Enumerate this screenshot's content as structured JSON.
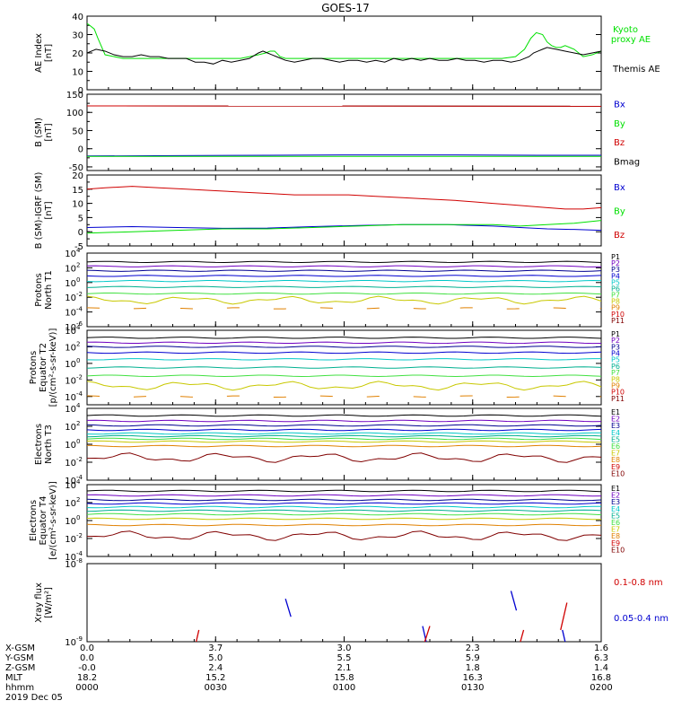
{
  "title": "GOES-17",
  "colors": {
    "black": "#000000",
    "red": "#d00000",
    "green": "#00e000",
    "blue": "#0000d0",
    "purple": "#7000c0",
    "navy": "#000090",
    "cyan": "#00c8c8",
    "teal": "#00b090",
    "lime": "#40e040",
    "yellow": "#c8c800",
    "orange": "#e08000",
    "maroon": "#800000"
  },
  "chart_data": [
    {
      "id": "ae",
      "type": "line",
      "ylabel": "AE Index [nT]",
      "ylim": [
        0,
        40
      ],
      "yticks": [
        0,
        10,
        20,
        30,
        40
      ],
      "legend": [
        {
          "name": "Kyoto proxy AE",
          "color": "green"
        },
        {
          "name": "Themis AE",
          "color": "black"
        }
      ],
      "series": [
        {
          "name": "Kyoto proxy AE",
          "color": "green",
          "x": [
            0,
            3,
            8,
            12,
            20,
            40,
            60,
            70,
            80,
            85,
            90,
            100,
            110,
            114,
            120,
            130,
            150,
            160,
            170,
            180,
            190,
            198,
            203,
            208,
            214,
            220,
            225,
            230,
            240,
            250,
            260,
            280,
            300,
            320,
            340,
            360,
            380,
            400,
            420,
            440,
            460,
            475,
            485,
            492,
            498,
            505,
            510,
            515,
            520,
            525,
            530,
            540,
            550,
            560,
            570
          ],
          "y": [
            36,
            35,
            33,
            28,
            19,
            17,
            17,
            17,
            17,
            17,
            17,
            17,
            17,
            17,
            17,
            17,
            17,
            17,
            17,
            18,
            19,
            20,
            21,
            21,
            18,
            17,
            17,
            17,
            17,
            17,
            17,
            17,
            17,
            17,
            17,
            17,
            17,
            17,
            17,
            17,
            17,
            18,
            22,
            28,
            31,
            30,
            26,
            24,
            23,
            23,
            24,
            22,
            18,
            19,
            21
          ]
        },
        {
          "name": "Themis AE",
          "color": "black",
          "x": [
            0,
            5,
            10,
            20,
            30,
            40,
            50,
            60,
            70,
            80,
            90,
            100,
            110,
            115,
            120,
            130,
            140,
            150,
            160,
            170,
            180,
            190,
            195,
            200,
            205,
            210,
            215,
            220,
            230,
            240,
            250,
            260,
            270,
            280,
            290,
            300,
            310,
            320,
            330,
            340,
            350,
            360,
            370,
            380,
            390,
            400,
            410,
            420,
            430,
            440,
            450,
            460,
            470,
            480,
            490,
            495,
            500,
            505,
            510,
            520,
            530,
            540,
            550,
            560,
            570
          ],
          "y": [
            20,
            21,
            22,
            21,
            19,
            18,
            18,
            19,
            18,
            18,
            17,
            17,
            17,
            16,
            15,
            15,
            14,
            16,
            15,
            16,
            17,
            20,
            21,
            20,
            19,
            18,
            17,
            16,
            15,
            16,
            17,
            17,
            16,
            15,
            16,
            16,
            15,
            16,
            15,
            17,
            16,
            17,
            16,
            17,
            16,
            16,
            17,
            16,
            16,
            15,
            16,
            16,
            15,
            16,
            18,
            20,
            21,
            22,
            23,
            22,
            21,
            20,
            19,
            20,
            21
          ]
        }
      ]
    },
    {
      "id": "b",
      "type": "line",
      "ylabel": "B (SM) [nT]",
      "ylim": [
        -60,
        150
      ],
      "yticks": [
        -50,
        0,
        50,
        100,
        150
      ],
      "legend": [
        {
          "name": "Bx",
          "color": "blue"
        },
        {
          "name": "By",
          "color": "green"
        },
        {
          "name": "Bz",
          "color": "red"
        },
        {
          "name": "Bmag",
          "color": "black"
        }
      ],
      "series": [
        {
          "name": "Bmag",
          "color": "black",
          "x": [
            0,
            570
          ],
          "y": [
            118,
            117
          ]
        },
        {
          "name": "Bz",
          "color": "red",
          "x": [
            0,
            570
          ],
          "y": [
            118,
            117
          ]
        },
        {
          "name": "Bx",
          "color": "blue",
          "x": [
            0,
            100,
            200,
            300,
            400,
            500,
            570
          ],
          "y": [
            -20,
            -19,
            -18,
            -17,
            -17,
            -18,
            -18
          ]
        },
        {
          "name": "By",
          "color": "green",
          "x": [
            0,
            570
          ],
          "y": [
            -21,
            -21
          ]
        }
      ]
    },
    {
      "id": "db",
      "type": "line",
      "ylabel": "B (SM)-IGRF (SM) [nT]",
      "ylim": [
        -5,
        20
      ],
      "yticks": [
        -5,
        0,
        5,
        10,
        15,
        20
      ],
      "legend": [
        {
          "name": "Bx",
          "color": "blue"
        },
        {
          "name": "By",
          "color": "green"
        },
        {
          "name": "Bz",
          "color": "red"
        }
      ],
      "series": [
        {
          "name": "Bz",
          "color": "red",
          "x": [
            0,
            20,
            50,
            80,
            110,
            140,
            170,
            200,
            230,
            260,
            290,
            320,
            350,
            380,
            410,
            430,
            450,
            470,
            490,
            510,
            530,
            550,
            570
          ],
          "y": [
            15,
            15.5,
            16,
            15.5,
            15,
            14.5,
            14,
            13.5,
            13,
            13,
            13,
            12.5,
            12,
            11.5,
            11,
            10.5,
            10,
            9.5,
            9,
            8.5,
            8,
            8,
            8.5
          ]
        },
        {
          "name": "Bx",
          "color": "blue",
          "x": [
            0,
            50,
            100,
            150,
            200,
            250,
            300,
            350,
            400,
            450,
            480,
            510,
            540,
            570
          ],
          "y": [
            1.5,
            1.8,
            1.5,
            1.2,
            1.3,
            1.8,
            2.2,
            2.5,
            2.5,
            2,
            1.5,
            1,
            0.8,
            0.5
          ]
        },
        {
          "name": "By",
          "color": "green",
          "x": [
            0,
            50,
            100,
            150,
            200,
            250,
            300,
            350,
            400,
            450,
            480,
            510,
            540,
            570
          ],
          "y": [
            -0.5,
            0,
            0.5,
            1,
            1,
            1.5,
            2,
            2.5,
            2.5,
            2.5,
            2,
            2.5,
            3,
            4
          ]
        }
      ]
    },
    {
      "id": "pn",
      "type": "line",
      "scale": "log",
      "ylabel": "Protons North T1",
      "ylog": [
        -6,
        4
      ],
      "yticks": [
        -6,
        -4,
        -2,
        0,
        2,
        4
      ],
      "tick_labels": [
        "10^-6",
        "10^-4",
        "10^-2",
        "10^0",
        "10^2",
        "10^4"
      ],
      "legend": [
        {
          "name": "P1",
          "color": "black"
        },
        {
          "name": "P2",
          "color": "purple"
        },
        {
          "name": "P3",
          "color": "navy"
        },
        {
          "name": "P4",
          "color": "blue"
        },
        {
          "name": "P5",
          "color": "cyan"
        },
        {
          "name": "P6",
          "color": "teal"
        },
        {
          "name": "P7",
          "color": "lime"
        },
        {
          "name": "P8",
          "color": "yellow"
        },
        {
          "name": "P9",
          "color": "orange"
        },
        {
          "name": "P10",
          "color": "red"
        },
        {
          "name": "P11",
          "color": "maroon"
        }
      ],
      "levels": [
        {
          "color": "black",
          "y": 2.8
        },
        {
          "color": "purple",
          "y": 2.2
        },
        {
          "color": "navy",
          "y": 1.6
        },
        {
          "color": "blue",
          "y": 0.9
        },
        {
          "color": "cyan",
          "y": 0.2
        },
        {
          "color": "teal",
          "y": -0.6
        },
        {
          "color": "lime",
          "y": -1.5
        },
        {
          "color": "yellow",
          "y": -2.4,
          "wavy": true
        },
        {
          "color": "orange",
          "y": -3.5,
          "dashed": true
        }
      ]
    },
    {
      "id": "pe",
      "type": "line",
      "scale": "log",
      "ylabel": "Protons Equator T2 [p/(cm²-s-sr-keV)]",
      "ylog": [
        -5,
        4
      ],
      "yticks": [
        -4,
        -2,
        0,
        2,
        4
      ],
      "tick_labels": [
        "10^-4",
        "10^-2",
        "10^0",
        "10^2",
        "10^4"
      ],
      "legend": [
        {
          "name": "P1",
          "color": "black"
        },
        {
          "name": "P2",
          "color": "purple"
        },
        {
          "name": "P3",
          "color": "navy"
        },
        {
          "name": "P4",
          "color": "blue"
        },
        {
          "name": "P5",
          "color": "cyan"
        },
        {
          "name": "P6",
          "color": "teal"
        },
        {
          "name": "P7",
          "color": "lime"
        },
        {
          "name": "P8",
          "color": "yellow"
        },
        {
          "name": "P9",
          "color": "orange"
        },
        {
          "name": "P10",
          "color": "red"
        },
        {
          "name": "P11",
          "color": "maroon"
        }
      ],
      "levels": [
        {
          "color": "black",
          "y": 3.1
        },
        {
          "color": "purple",
          "y": 2.5
        },
        {
          "color": "navy",
          "y": 2.0
        },
        {
          "color": "blue",
          "y": 1.3
        },
        {
          "color": "cyan",
          "y": 0.5
        },
        {
          "color": "teal",
          "y": -0.5
        },
        {
          "color": "lime",
          "y": -1.5
        },
        {
          "color": "yellow",
          "y": -2.7,
          "wavy": true
        },
        {
          "color": "orange",
          "y": -4.0,
          "dashed": true
        }
      ]
    },
    {
      "id": "en",
      "type": "line",
      "scale": "log",
      "ylabel": "Electrons North T3",
      "ylog": [
        -4,
        4
      ],
      "yticks": [
        -4,
        -2,
        0,
        2,
        4
      ],
      "tick_labels": [
        "10^-4",
        "10^-2",
        "10^0",
        "10^2",
        "10^4"
      ],
      "legend": [
        {
          "name": "E1",
          "color": "black"
        },
        {
          "name": "E2",
          "color": "purple"
        },
        {
          "name": "E3",
          "color": "navy"
        },
        {
          "name": "E4",
          "color": "cyan"
        },
        {
          "name": "E5",
          "color": "teal"
        },
        {
          "name": "E6",
          "color": "lime"
        },
        {
          "name": "E7",
          "color": "yellow"
        },
        {
          "name": "E8",
          "color": "orange"
        },
        {
          "name": "E9",
          "color": "red"
        },
        {
          "name": "E10",
          "color": "maroon"
        }
      ],
      "levels": [
        {
          "color": "black",
          "y": 3.2
        },
        {
          "color": "purple",
          "y": 2.6
        },
        {
          "color": "navy",
          "y": 2.1
        },
        {
          "color": "blue",
          "y": 1.6
        },
        {
          "color": "cyan",
          "y": 1.2
        },
        {
          "color": "teal",
          "y": 0.9
        },
        {
          "color": "lime",
          "y": 0.6
        },
        {
          "color": "yellow",
          "y": 0.3
        },
        {
          "color": "orange",
          "y": -0.2
        },
        {
          "color": "maroon",
          "y": -1.5,
          "wavy": true
        }
      ]
    },
    {
      "id": "ee",
      "type": "line",
      "scale": "log",
      "ylabel": "Electrons Equator T4 [e/(cm²-s-sr-keV)]",
      "ylog": [
        -4,
        4
      ],
      "yticks": [
        -4,
        -2,
        0,
        2,
        4
      ],
      "tick_labels": [
        "10^-4",
        "10^-2",
        "10^0",
        "10^2",
        "10^4"
      ],
      "legend": [
        {
          "name": "E1",
          "color": "black"
        },
        {
          "name": "E2",
          "color": "purple"
        },
        {
          "name": "E3",
          "color": "navy"
        },
        {
          "name": "E4",
          "color": "cyan"
        },
        {
          "name": "E5",
          "color": "teal"
        },
        {
          "name": "E6",
          "color": "lime"
        },
        {
          "name": "E7",
          "color": "yellow"
        },
        {
          "name": "E8",
          "color": "orange"
        },
        {
          "name": "E9",
          "color": "red"
        },
        {
          "name": "E10",
          "color": "maroon"
        }
      ],
      "levels": [
        {
          "color": "black",
          "y": 3.3
        },
        {
          "color": "purple",
          "y": 2.8
        },
        {
          "color": "navy",
          "y": 2.3
        },
        {
          "color": "blue",
          "y": 1.9
        },
        {
          "color": "cyan",
          "y": 1.5
        },
        {
          "color": "teal",
          "y": 1.1
        },
        {
          "color": "lime",
          "y": 0.7
        },
        {
          "color": "yellow",
          "y": 0.2
        },
        {
          "color": "orange",
          "y": -0.5
        },
        {
          "color": "maroon",
          "y": -1.7,
          "wavy": true
        }
      ]
    },
    {
      "id": "xray",
      "type": "line",
      "scale": "log",
      "ylabel": "Xray flux [W/m²]",
      "ylog": [
        -9,
        -8
      ],
      "yticks": [
        -9,
        -8
      ],
      "tick_labels": [
        "10^-9",
        "10^-8"
      ],
      "legend": [
        {
          "name": "0.1-0.8 nm",
          "color": "red"
        },
        {
          "name": "0.05-0.4 nm",
          "color": "blue"
        }
      ],
      "segments": [
        {
          "color": "red",
          "x": [
            120,
            124
          ],
          "y": [
            -9.05,
            -8.85
          ]
        },
        {
          "color": "blue",
          "x": [
            220,
            226
          ],
          "y": [
            -8.45,
            -8.68
          ]
        },
        {
          "color": "blue",
          "x": [
            372,
            378
          ],
          "y": [
            -8.8,
            -9.1
          ]
        },
        {
          "color": "red",
          "x": [
            373,
            380
          ],
          "y": [
            -9.05,
            -8.8
          ]
        },
        {
          "color": "blue",
          "x": [
            470,
            476
          ],
          "y": [
            -8.35,
            -8.6
          ]
        },
        {
          "color": "red",
          "x": [
            478,
            484
          ],
          "y": [
            -9.1,
            -8.85
          ]
        },
        {
          "color": "red",
          "x": [
            525,
            532
          ],
          "y": [
            -8.85,
            -8.5
          ]
        },
        {
          "color": "blue",
          "x": [
            527,
            532
          ],
          "y": [
            -8.85,
            -9.1
          ]
        }
      ]
    }
  ],
  "x_axis": {
    "rows": [
      {
        "label": "X-GSM",
        "values": [
          "0.0",
          "3.7",
          "3.0",
          "2.3",
          "1.6"
        ]
      },
      {
        "label": "Y-GSM",
        "values": [
          "0.0",
          "5.0",
          "5.5",
          "5.9",
          "6.3"
        ]
      },
      {
        "label": "Z-GSM",
        "values": [
          "-0.0",
          "2.4",
          "2.1",
          "1.8",
          "1.4"
        ]
      },
      {
        "label": "MLT",
        "values": [
          "18.2",
          "15.2",
          "15.8",
          "16.3",
          "16.8"
        ]
      },
      {
        "label": "hhmm",
        "values": [
          "0000",
          "0030",
          "0100",
          "0130",
          "0200"
        ]
      }
    ],
    "date": "2019 Dec 05"
  }
}
